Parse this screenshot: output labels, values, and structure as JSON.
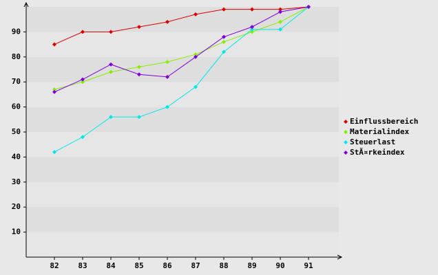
{
  "chart_data": {
    "type": "line",
    "categories": [
      "82",
      "83",
      "84",
      "85",
      "86",
      "87",
      "88",
      "89",
      "90",
      "91"
    ],
    "series": [
      {
        "name": "Einflussbereich",
        "color": "#dd0000",
        "values": [
          85,
          90,
          90,
          92,
          94,
          97,
          99,
          99,
          99,
          100
        ]
      },
      {
        "name": "Materialindex",
        "color": "#88ee00",
        "values": [
          67,
          70,
          74,
          76,
          78,
          81,
          86,
          90,
          94,
          100
        ]
      },
      {
        "name": "Steuerlast",
        "color": "#00e8e8",
        "values": [
          42,
          48,
          56,
          56,
          60,
          68,
          82,
          91,
          91,
          100
        ]
      },
      {
        "name": "StÃ¤rkeindex",
        "color": "#8000dd",
        "values": [
          66,
          71,
          77,
          73,
          72,
          80,
          88,
          92,
          98,
          100
        ]
      }
    ],
    "ylim": [
      0,
      100
    ],
    "yticks": [
      10,
      20,
      30,
      40,
      50,
      60,
      70,
      80,
      90
    ],
    "grid": true,
    "legend": "right"
  }
}
